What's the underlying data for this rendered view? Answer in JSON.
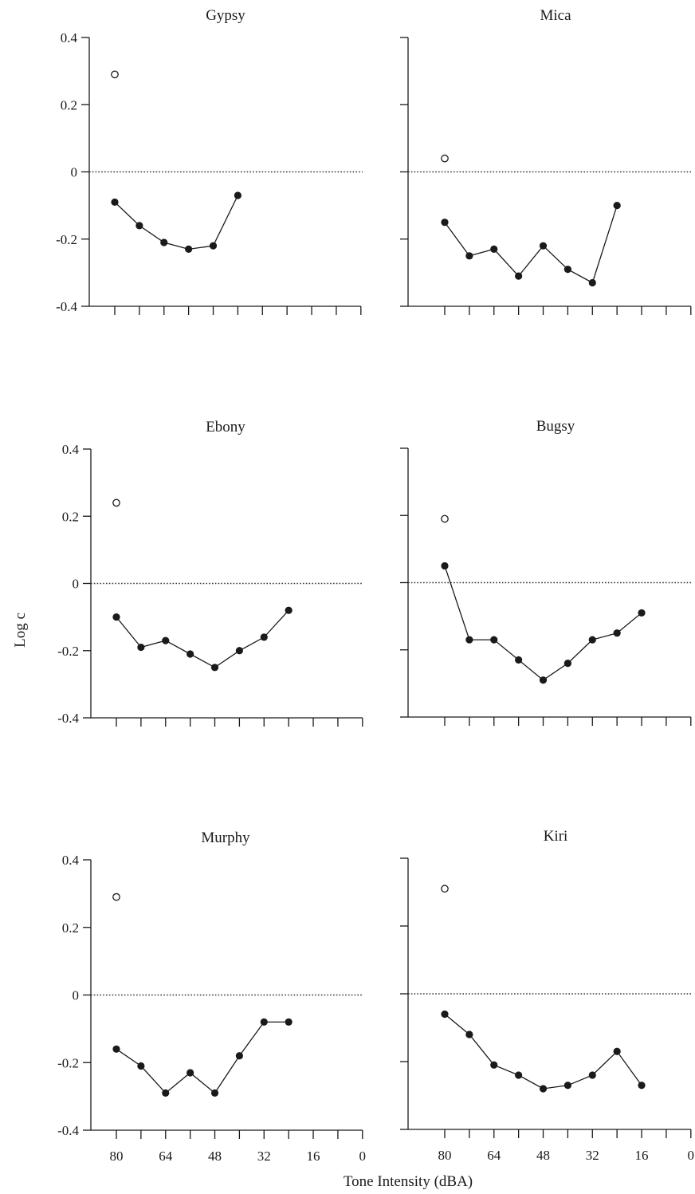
{
  "chart_data": {
    "type": "line",
    "xlabel": "Tone Intensity (dBA)",
    "ylabel": "Log c",
    "xlim": [
      90,
      0
    ],
    "ylim": [
      -0.4,
      0.4
    ],
    "x_ticks": [
      80,
      64,
      48,
      32,
      16,
      0
    ],
    "x_ticks_all": [
      80,
      72,
      64,
      56,
      48,
      40,
      32,
      24,
      16,
      8,
      0
    ],
    "y_ticks": [
      0.4,
      0.2,
      0,
      -0.2,
      -0.4
    ],
    "y_tick_labels": [
      "0.4",
      "0.2",
      "0",
      "-0.2",
      "-0.4"
    ],
    "reference_line": 0,
    "panels": [
      {
        "title": "Gypsy",
        "open_point": {
          "x": 80,
          "y": 0.29
        },
        "x": [
          80,
          72,
          64,
          56,
          48,
          40
        ],
        "y": [
          -0.09,
          -0.16,
          -0.21,
          -0.23,
          -0.22,
          -0.07
        ]
      },
      {
        "title": "Mica",
        "open_point": {
          "x": 80,
          "y": 0.04
        },
        "x": [
          80,
          72,
          64,
          56,
          48,
          40,
          32,
          24
        ],
        "y": [
          -0.15,
          -0.25,
          -0.23,
          -0.31,
          -0.22,
          -0.29,
          -0.33,
          -0.1
        ]
      },
      {
        "title": "Ebony",
        "open_point": {
          "x": 80,
          "y": 0.24
        },
        "x": [
          80,
          72,
          64,
          56,
          48,
          40,
          32,
          24
        ],
        "y": [
          -0.1,
          -0.19,
          -0.17,
          -0.21,
          -0.25,
          -0.2,
          -0.16,
          -0.08
        ]
      },
      {
        "title": "Bugsy",
        "open_point": {
          "x": 80,
          "y": 0.19
        },
        "x": [
          80,
          72,
          64,
          56,
          48,
          40,
          32,
          24,
          16
        ],
        "y": [
          0.05,
          -0.17,
          -0.17,
          -0.23,
          -0.29,
          -0.24,
          -0.17,
          -0.15,
          -0.09
        ]
      },
      {
        "title": "Murphy",
        "open_point": {
          "x": 80,
          "y": 0.29
        },
        "x": [
          80,
          72,
          64,
          56,
          48,
          40,
          32,
          24
        ],
        "y": [
          -0.16,
          -0.21,
          -0.29,
          -0.23,
          -0.29,
          -0.18,
          -0.08,
          -0.08
        ]
      },
      {
        "title": "Kiri",
        "open_point": {
          "x": 80,
          "y": 0.31
        },
        "x": [
          80,
          72,
          64,
          56,
          48,
          40,
          32,
          24,
          16
        ],
        "y": [
          -0.06,
          -0.12,
          -0.21,
          -0.24,
          -0.28,
          -0.27,
          -0.24,
          -0.17,
          -0.27
        ]
      }
    ]
  }
}
